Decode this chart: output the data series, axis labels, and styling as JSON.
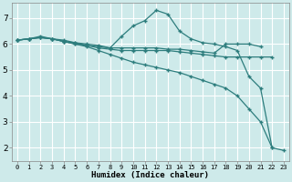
{
  "xlabel": "Humidex (Indice chaleur)",
  "background_color": "#ceeaea",
  "grid_color": "#ffffff",
  "line_color": "#2d7d7d",
  "xlim": [
    -0.5,
    23.5
  ],
  "ylim": [
    1.5,
    7.6
  ],
  "xticks": [
    0,
    1,
    2,
    3,
    4,
    5,
    6,
    7,
    8,
    9,
    10,
    11,
    12,
    13,
    14,
    15,
    16,
    17,
    18,
    19,
    20,
    21,
    22,
    23
  ],
  "yticks": [
    2,
    3,
    4,
    5,
    6,
    7
  ],
  "series": [
    {
      "x": [
        0,
        1,
        2,
        3,
        4,
        5,
        6,
        7,
        8,
        9,
        10,
        11,
        12,
        13,
        14,
        15,
        16,
        17,
        18,
        19,
        20,
        21,
        22
      ],
      "y": [
        6.15,
        6.2,
        6.25,
        6.2,
        6.15,
        6.05,
        5.95,
        5.85,
        5.8,
        5.75,
        5.75,
        5.75,
        5.75,
        5.75,
        5.7,
        5.65,
        5.6,
        5.55,
        5.5,
        5.5,
        5.5,
        5.5,
        5.5
      ]
    },
    {
      "x": [
        0,
        1,
        2,
        3,
        4,
        5,
        6,
        7,
        8,
        9,
        10,
        11,
        12,
        13,
        14,
        15,
        16,
        17,
        18,
        19,
        20,
        21
      ],
      "y": [
        6.15,
        6.2,
        6.25,
        6.2,
        6.1,
        6.0,
        5.95,
        5.9,
        5.85,
        5.85,
        5.85,
        5.85,
        5.85,
        5.8,
        5.8,
        5.75,
        5.7,
        5.65,
        6.0,
        6.0,
        6.0,
        5.9
      ]
    },
    {
      "x": [
        0,
        1,
        2,
        3,
        4,
        5,
        6,
        7,
        8,
        9,
        10,
        11,
        12,
        13,
        14,
        15,
        16,
        17,
        18,
        19,
        20,
        21,
        22
      ],
      "y": [
        6.15,
        6.2,
        6.25,
        6.2,
        6.1,
        6.0,
        5.9,
        5.75,
        5.6,
        5.45,
        5.3,
        5.2,
        5.1,
        5.0,
        4.9,
        4.75,
        4.6,
        4.45,
        4.3,
        4.0,
        3.5,
        3.0,
        2.0
      ]
    },
    {
      "x": [
        0,
        1,
        2,
        3,
        4,
        5,
        6,
        7,
        8,
        9,
        10,
        11,
        12,
        13,
        14,
        15,
        16,
        17,
        18,
        19,
        20,
        21,
        22,
        23
      ],
      "y": [
        6.15,
        6.2,
        6.3,
        6.2,
        6.1,
        6.05,
        6.0,
        5.95,
        5.85,
        6.3,
        6.7,
        6.9,
        7.3,
        7.15,
        6.5,
        6.2,
        6.05,
        6.0,
        5.9,
        5.75,
        4.75,
        4.3,
        2.0,
        1.9
      ]
    }
  ]
}
